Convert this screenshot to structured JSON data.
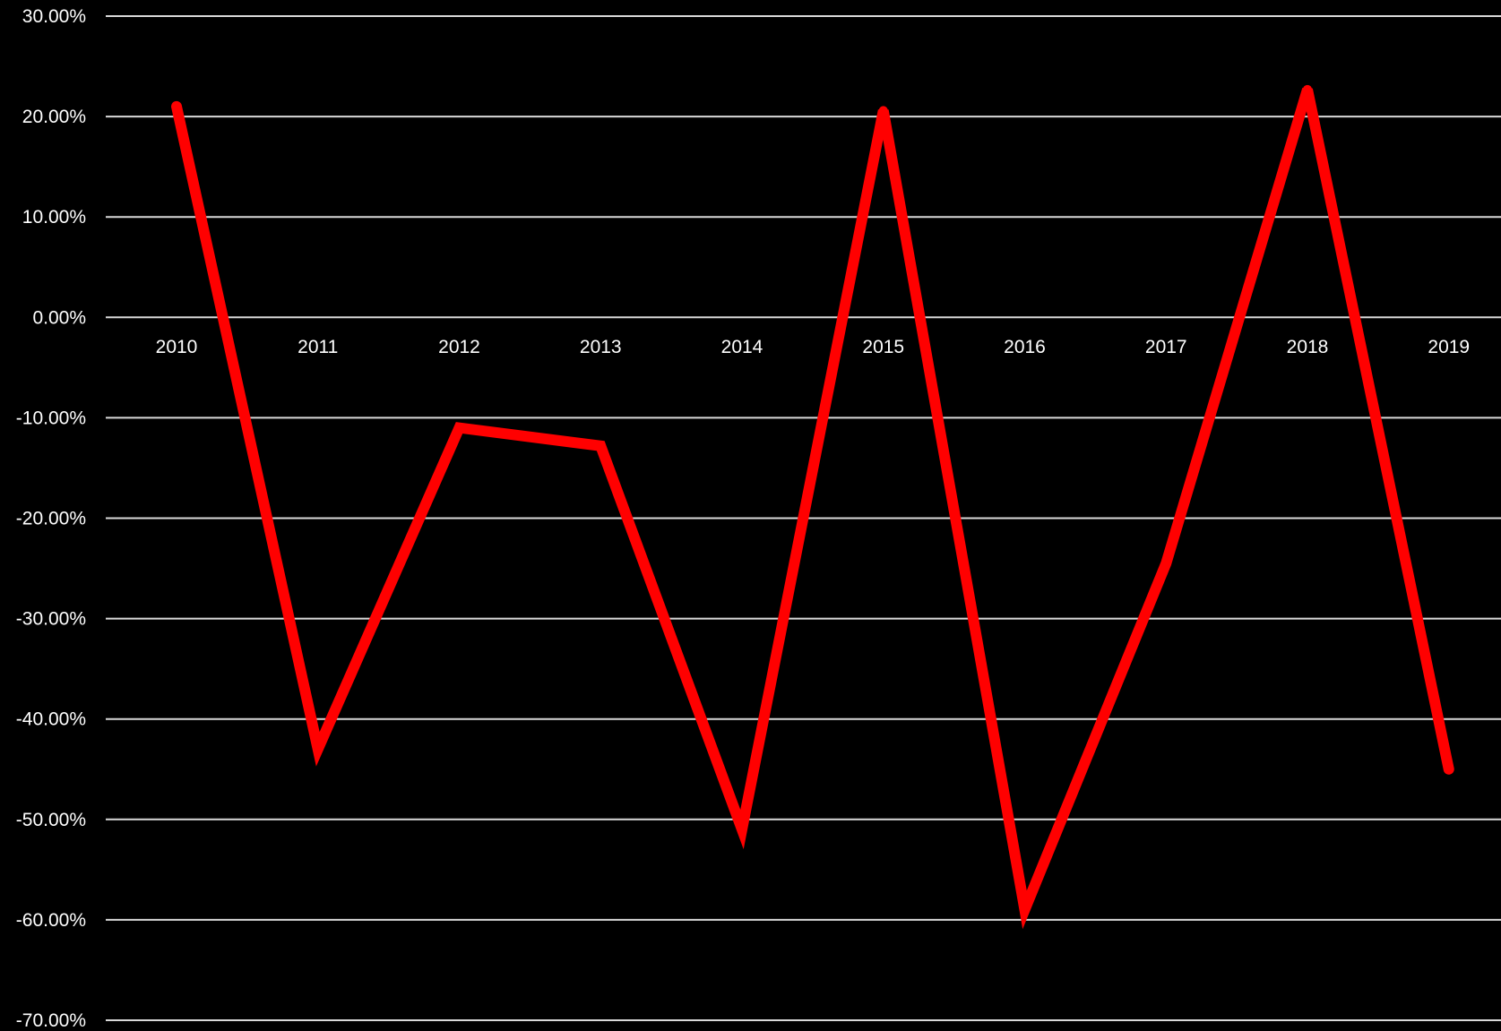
{
  "chart_data": {
    "type": "line",
    "title": "",
    "xlabel": "",
    "ylabel": "",
    "categories": [
      "2010",
      "2011",
      "2012",
      "2013",
      "2014",
      "2015",
      "2016",
      "2017",
      "2018",
      "2019"
    ],
    "series": [
      {
        "values": [
          21.0,
          -43.0,
          -11.0,
          -12.8,
          -51.0,
          20.6,
          -59.0,
          -24.5,
          22.7,
          -45.0
        ],
        "color": "#ff0000"
      }
    ],
    "ylim": [
      -70,
      30
    ],
    "ytick_values": [
      30,
      20,
      10,
      0,
      -10,
      -20,
      -30,
      -40,
      -50,
      -60,
      -70
    ],
    "ytick_labels": [
      "30.00%",
      "20.00%",
      "10.00%",
      "0.00%",
      "-10.00%",
      "-20.00%",
      "-30.00%",
      "-40.00%",
      "-50.00%",
      "-60.00%",
      "-70.00%"
    ],
    "grid": true,
    "legend": "none",
    "background": "#000000",
    "gridline_color": "#d9d9d9",
    "text_color": "#ffffff"
  }
}
